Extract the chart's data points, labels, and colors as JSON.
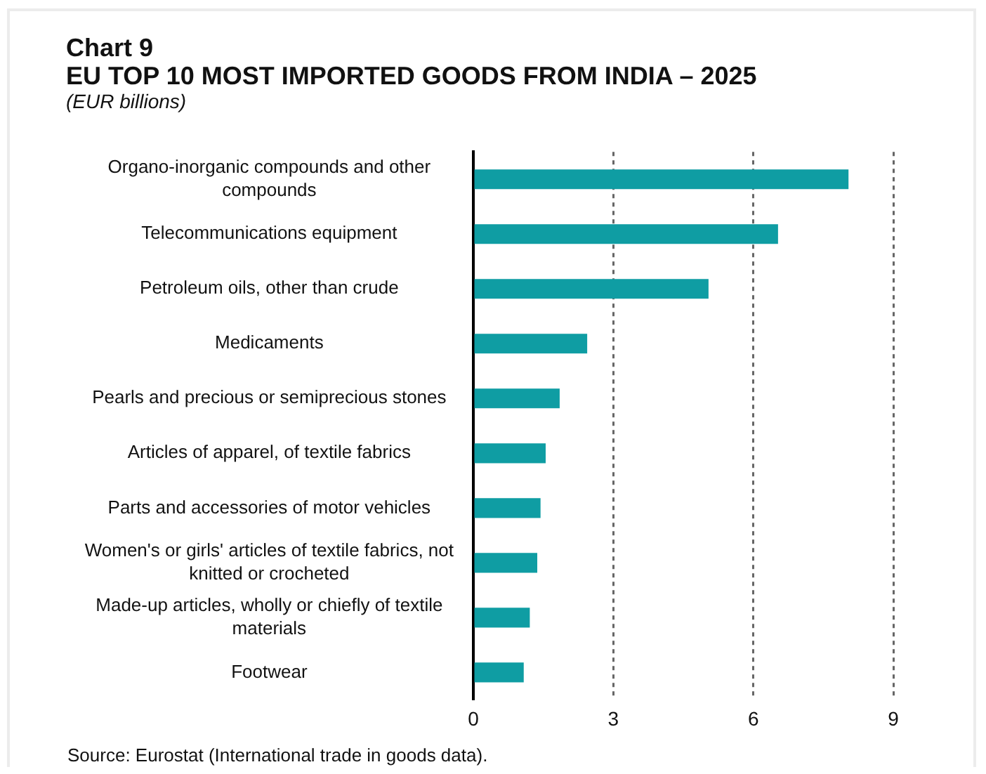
{
  "chart_data": {
    "type": "bar",
    "orientation": "horizontal",
    "title": "Chart 9",
    "subtitle": "EU TOP 10 MOST IMPORTED GOODS FROM INDIA – 2025",
    "annotations": [
      "(EUR billions)",
      "Source: Eurostat (International trade in goods data)."
    ],
    "categories": [
      "Organo-inorganic compounds and other compounds",
      "Telecommunications equipment",
      "Petroleum oils, other than crude",
      "Medicaments",
      "Pearls and precious or semiprecious stones",
      "Articles of apparel, of textile fabrics",
      "Parts and accessories of motor vehicles",
      "Women's or girls' articles of textile fabrics, not knitted or crocheted",
      "Made-up articles, wholly or chiefly of textile materials",
      "Footwear"
    ],
    "values": [
      8.04,
      6.53,
      5.04,
      2.44,
      1.85,
      1.55,
      1.44,
      1.37,
      1.21,
      1.08
    ],
    "color": "#0f9da3",
    "xlim": [
      0,
      9
    ],
    "xticks": [
      0,
      3,
      6,
      9
    ],
    "grid": "x",
    "legend": false
  }
}
